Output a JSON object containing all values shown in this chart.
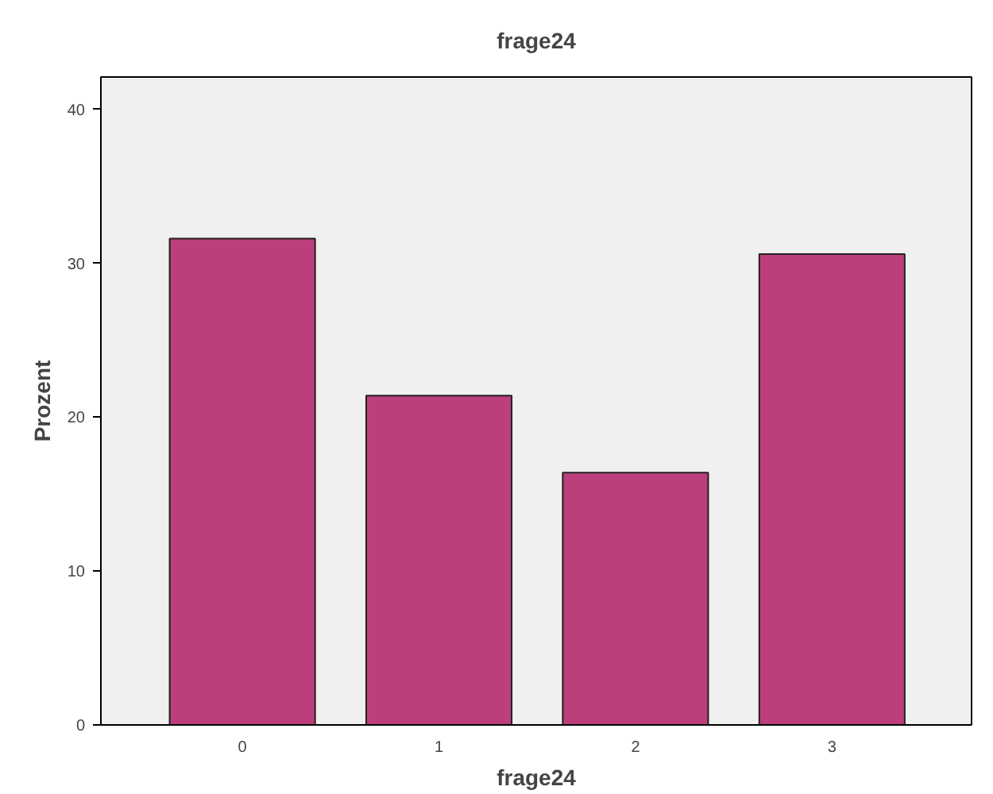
{
  "chart_data": {
    "type": "bar",
    "title": "frage24",
    "xlabel": "frage24",
    "ylabel": "Prozent",
    "categories": [
      "0",
      "1",
      "2",
      "3"
    ],
    "values": [
      31.6,
      21.4,
      16.4,
      30.6
    ],
    "color": "#bc3f7c",
    "ylim": [
      0,
      42.1
    ],
    "yticks": [
      0,
      10,
      20,
      30,
      40
    ],
    "grid": false
  }
}
